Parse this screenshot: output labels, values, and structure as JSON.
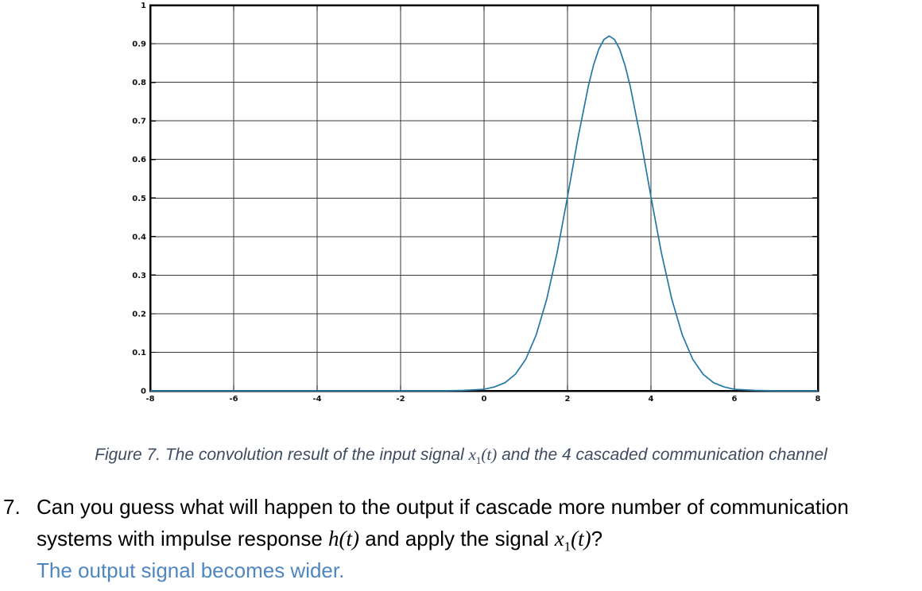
{
  "chart_data": {
    "type": "line",
    "title": "",
    "xlabel": "",
    "ylabel": "",
    "xlim": [
      -8,
      8
    ],
    "ylim": [
      0,
      1
    ],
    "xticks": [
      -8,
      -6,
      -4,
      -2,
      0,
      2,
      4,
      6,
      8
    ],
    "xtick_labels": [
      "-8",
      "-6",
      "-4",
      "-2",
      "0",
      "2",
      "4",
      "6",
      "8"
    ],
    "yticks": [
      0,
      0.1,
      0.2,
      0.3,
      0.4,
      0.5,
      0.6,
      0.7,
      0.8,
      0.9,
      1
    ],
    "ytick_labels": [
      "0",
      "0.1",
      "0.2",
      "0.3",
      "0.4",
      "0.5",
      "0.6",
      "0.7",
      "0.8",
      "0.9",
      "1"
    ],
    "grid": true,
    "legend": "none",
    "line_color": "#2478a5",
    "grid_color": "#383838",
    "box_color": "#000000",
    "description": "Gaussian-shaped convolution output pulse centered at t=3, peak about 0.92, value 0.5 at t=2 and t=4, approaching 0 below t=0.5 and above t=5.5",
    "series": [
      {
        "name": "convolution result",
        "points": [
          [
            -8,
            0
          ],
          [
            -7,
            0
          ],
          [
            -6,
            0
          ],
          [
            -5,
            0
          ],
          [
            -4,
            0
          ],
          [
            -3,
            0
          ],
          [
            -2,
            0
          ],
          [
            -1.5,
            0
          ],
          [
            -1,
            0
          ],
          [
            -0.5,
            0.001
          ],
          [
            0,
            0.004
          ],
          [
            0.25,
            0.01
          ],
          [
            0.5,
            0.021
          ],
          [
            0.75,
            0.043
          ],
          [
            1,
            0.082
          ],
          [
            1.25,
            0.145
          ],
          [
            1.5,
            0.237
          ],
          [
            1.75,
            0.358
          ],
          [
            2,
            0.503
          ],
          [
            2.25,
            0.655
          ],
          [
            2.5,
            0.791
          ],
          [
            2.625,
            0.845
          ],
          [
            2.75,
            0.886
          ],
          [
            2.875,
            0.911
          ],
          [
            3,
            0.92
          ],
          [
            3.125,
            0.911
          ],
          [
            3.25,
            0.886
          ],
          [
            3.375,
            0.845
          ],
          [
            3.5,
            0.791
          ],
          [
            3.75,
            0.655
          ],
          [
            4,
            0.503
          ],
          [
            4.25,
            0.358
          ],
          [
            4.5,
            0.237
          ],
          [
            4.75,
            0.145
          ],
          [
            5,
            0.082
          ],
          [
            5.25,
            0.043
          ],
          [
            5.5,
            0.021
          ],
          [
            5.75,
            0.01
          ],
          [
            6,
            0.004
          ],
          [
            6.5,
            0.001
          ],
          [
            7,
            0
          ],
          [
            8,
            0
          ]
        ]
      }
    ]
  },
  "caption": {
    "part1": "Figure 7. The convolution result of the input signal ",
    "math_var": "x",
    "math_sub": "1",
    "math_args": "(t)",
    "part2": " and the 4 cascaded communication channel"
  },
  "question": {
    "number": "7.",
    "line1": "Can you guess what will happen to the output if cascade more number of communication",
    "line2a": "systems with impulse response ",
    "math_h": "h(t)",
    "line2b": " and apply the signal ",
    "math_x_var": "x",
    "math_x_sub": "1",
    "math_x_args": "(t)",
    "line2c": "?",
    "answer": "The output signal becomes wider.",
    "answer_color": "#4e86c0"
  }
}
